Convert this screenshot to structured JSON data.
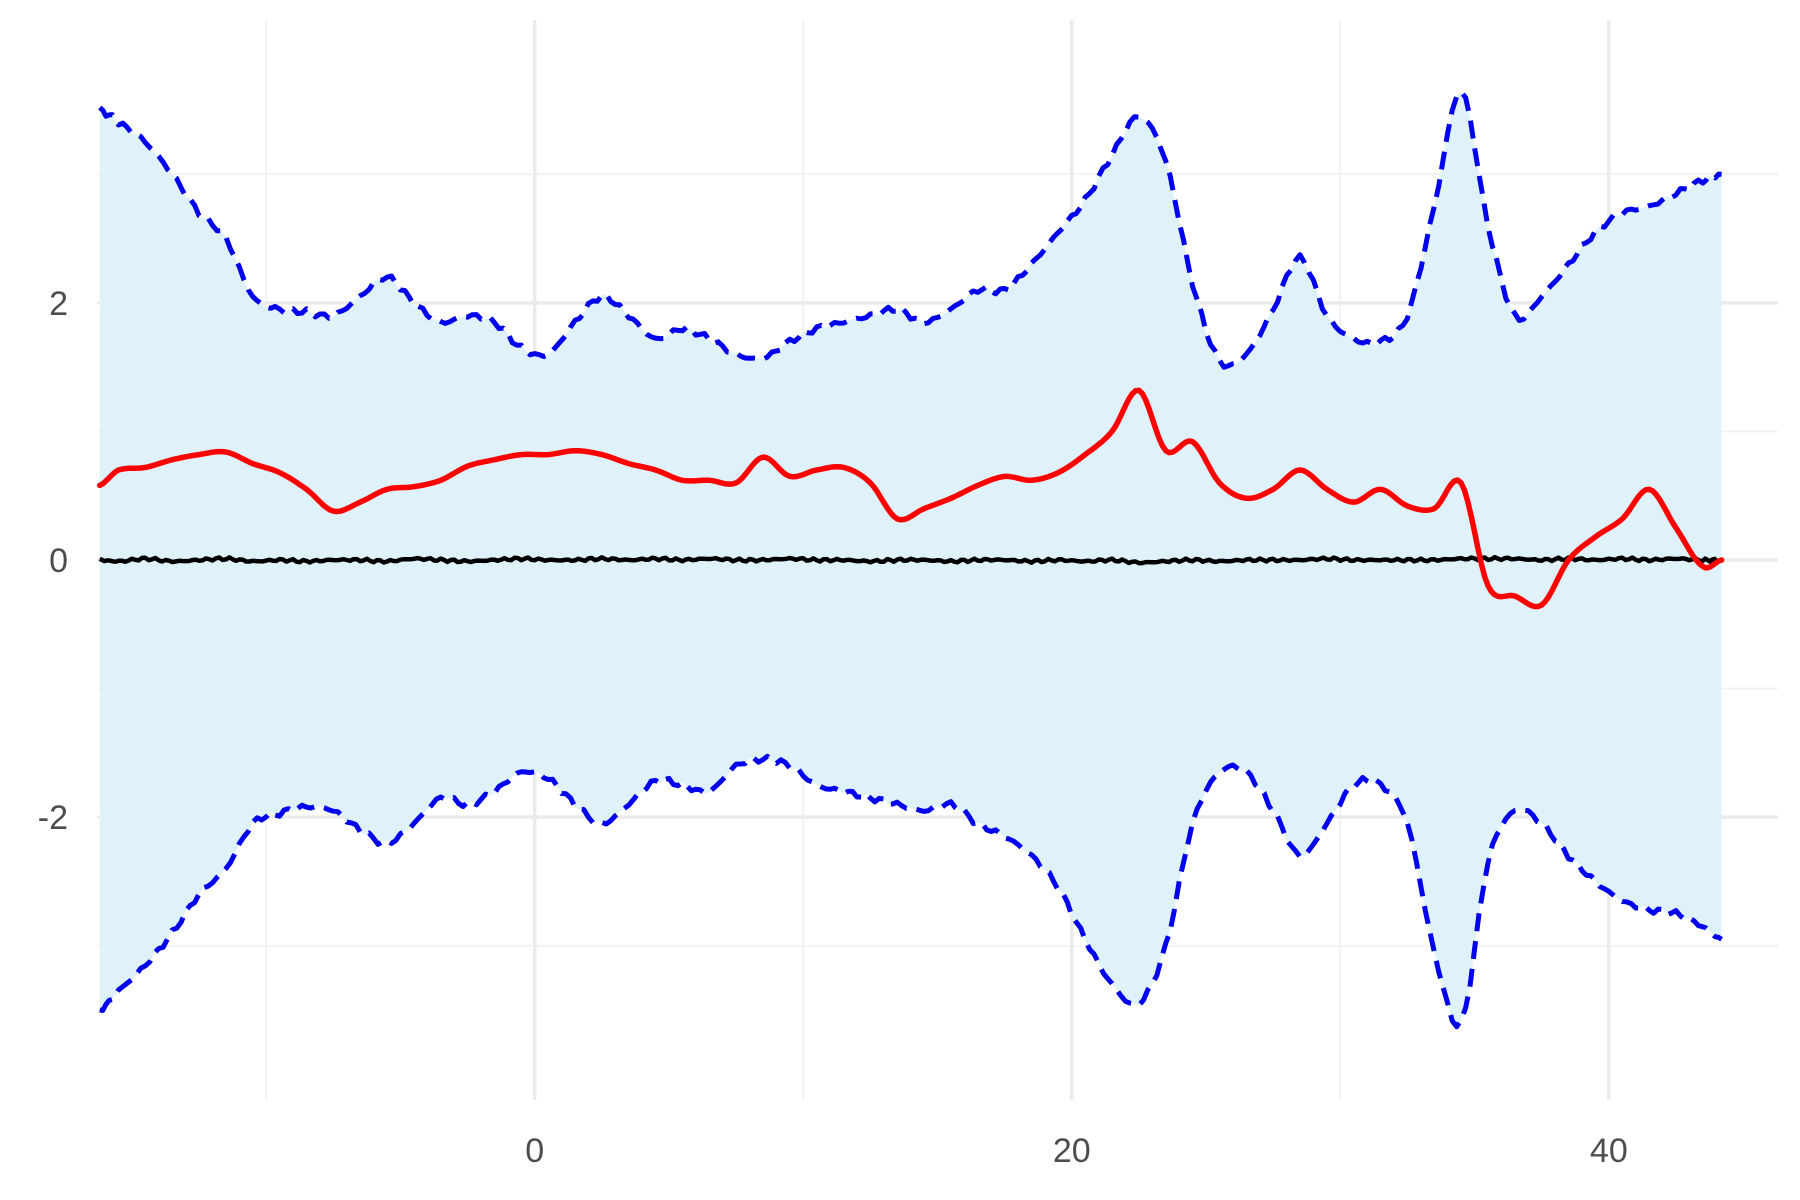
{
  "chart_data": {
    "type": "line",
    "title": "",
    "xlabel": "",
    "ylabel": "",
    "xlim": [
      -16.3,
      46.3
    ],
    "ylim": [
      -4.2,
      4.2
    ],
    "x_ticks": [
      0,
      20,
      40
    ],
    "x_tick_labels": [
      "0",
      "20",
      "40"
    ],
    "x_minor_ticks": [
      -10,
      10,
      30
    ],
    "y_ticks": [
      -2,
      0,
      2
    ],
    "y_tick_labels": [
      "-2",
      "0",
      "2"
    ],
    "y_minor_ticks": [
      -3,
      -1,
      1,
      3
    ],
    "grid": true,
    "legend": "none",
    "colors": {
      "band_fill": "#dff2f9",
      "upper_line": "#0000ee",
      "lower_line": "#0000ee",
      "red_series": "#ff0000",
      "black_series": "#000000",
      "grid_major": "#ebebeb",
      "grid_minor": "#f2f2f2"
    },
    "upper_band": {
      "x": [
        -16.2,
        -15.5,
        -14.5,
        -13.5,
        -12.5,
        -11.5,
        -10.5,
        -9.5,
        -8.5,
        -7.5,
        -6.5,
        -5.5,
        -4.5,
        -3.5,
        -2.5,
        -1.5,
        -0.5,
        0.5,
        1.5,
        2.5,
        3.5,
        4.5,
        5.5,
        6.5,
        7.5,
        8.5,
        9.5,
        10.5,
        11.5,
        12.5,
        13.5,
        14.5,
        15.5,
        16.5,
        17.5,
        18.5,
        19.5,
        20.5,
        21.5,
        22.5,
        23.5,
        24.5,
        25.5,
        26.5,
        27.5,
        28.5,
        29.5,
        30.5,
        31.5,
        32.5,
        33.5,
        34.5,
        35.5,
        36.5,
        37.5,
        38.5,
        39.5,
        40.5,
        41.5,
        42.5,
        43.5,
        44.2
      ],
      "values": [
        3.5,
        3.4,
        3.25,
        3.0,
        2.7,
        2.5,
        2.05,
        1.95,
        1.93,
        1.9,
        2.05,
        2.2,
        2.0,
        1.85,
        1.9,
        1.85,
        1.65,
        1.6,
        1.85,
        2.05,
        1.9,
        1.72,
        1.8,
        1.72,
        1.6,
        1.57,
        1.7,
        1.8,
        1.85,
        1.9,
        1.95,
        1.85,
        1.95,
        2.1,
        2.1,
        2.3,
        2.55,
        2.8,
        3.15,
        3.45,
        3.1,
        2.15,
        1.55,
        1.6,
        1.95,
        2.35,
        1.9,
        1.72,
        1.7,
        1.9,
        2.75,
        3.65,
        2.6,
        1.9,
        2.05,
        2.3,
        2.55,
        2.7,
        2.75,
        2.85,
        2.95,
        3.0
      ]
    },
    "lower_band": {
      "x": [
        -16.2,
        -15.5,
        -14.5,
        -13.5,
        -12.5,
        -11.5,
        -10.5,
        -9.5,
        -8.5,
        -7.5,
        -6.5,
        -5.5,
        -4.5,
        -3.5,
        -2.5,
        -1.5,
        -0.5,
        0.5,
        1.5,
        2.5,
        3.5,
        4.5,
        5.5,
        6.5,
        7.5,
        8.5,
        9.5,
        10.5,
        11.5,
        12.5,
        13.5,
        14.5,
        15.5,
        16.5,
        17.5,
        18.5,
        19.5,
        20.5,
        21.5,
        22.5,
        23.5,
        24.5,
        25.5,
        26.5,
        27.5,
        28.5,
        29.5,
        30.5,
        31.5,
        32.5,
        33.5,
        34.5,
        35.5,
        36.5,
        37.5,
        38.5,
        39.5,
        40.5,
        41.5,
        42.5,
        43.5,
        44.2
      ],
      "values": [
        -3.5,
        -3.35,
        -3.15,
        -2.9,
        -2.6,
        -2.4,
        -2.05,
        -1.97,
        -1.92,
        -1.95,
        -2.1,
        -2.2,
        -2.05,
        -1.85,
        -1.9,
        -1.8,
        -1.65,
        -1.7,
        -1.9,
        -2.05,
        -1.9,
        -1.72,
        -1.75,
        -1.8,
        -1.6,
        -1.55,
        -1.6,
        -1.75,
        -1.8,
        -1.85,
        -1.9,
        -1.95,
        -1.9,
        -2.05,
        -2.15,
        -2.3,
        -2.55,
        -2.95,
        -3.3,
        -3.45,
        -3.0,
        -2.05,
        -1.65,
        -1.65,
        -1.95,
        -2.3,
        -2.05,
        -1.75,
        -1.75,
        -2.05,
        -3.05,
        -3.6,
        -2.35,
        -1.95,
        -2.05,
        -2.3,
        -2.5,
        -2.65,
        -2.72,
        -2.75,
        -2.85,
        -2.95
      ]
    },
    "series": [
      {
        "x": [
          -16.2,
          -15.5,
          -14.5,
          -13.5,
          -12.5,
          -11.5,
          -10.5,
          -9.5,
          -8.5,
          -7.5,
          -6.5,
          -5.5,
          -4.5,
          -3.5,
          -2.5,
          -1.5,
          -0.5,
          0.5,
          1.5,
          2.5,
          3.5,
          4.5,
          5.5,
          6.5,
          7.5,
          8.5,
          9.5,
          10.5,
          11.5,
          12.5,
          13.5,
          14.5,
          15.5,
          16.5,
          17.5,
          18.5,
          19.5,
          20.5,
          21.5,
          22.5,
          23.5,
          24.5,
          25.5,
          26.5,
          27.5,
          28.5,
          29.5,
          30.5,
          31.5,
          32.5,
          33.5,
          34.5,
          35.5,
          36.5,
          37.5,
          38.5,
          39.5,
          40.5,
          41.5,
          42.5,
          43.5,
          44.2
        ],
        "values": [
          0.58,
          0.7,
          0.72,
          0.78,
          0.82,
          0.84,
          0.75,
          0.68,
          0.55,
          0.38,
          0.45,
          0.55,
          0.57,
          0.62,
          0.73,
          0.78,
          0.82,
          0.82,
          0.85,
          0.82,
          0.75,
          0.7,
          0.62,
          0.62,
          0.6,
          0.8,
          0.65,
          0.7,
          0.72,
          0.6,
          0.32,
          0.4,
          0.48,
          0.58,
          0.65,
          0.62,
          0.68,
          0.82,
          1.0,
          1.32,
          0.85,
          0.92,
          0.6,
          0.48,
          0.55,
          0.7,
          0.55,
          0.45,
          0.55,
          0.42,
          0.4,
          0.6,
          -0.2,
          -0.28,
          -0.35,
          0.0,
          0.18,
          0.32,
          0.55,
          0.25,
          -0.05,
          0.0
        ]
      },
      {
        "x": [
          -16.2,
          -15.5,
          -14.5,
          -13.5,
          -12.5,
          -11.5,
          -10.5,
          -9.5,
          -8.5,
          -7.5,
          -6.5,
          -5.5,
          -4.5,
          -3.5,
          -2.5,
          -1.5,
          -0.5,
          0.5,
          1.5,
          2.5,
          3.5,
          4.5,
          5.5,
          6.5,
          7.5,
          8.5,
          9.5,
          10.5,
          11.5,
          12.5,
          13.5,
          14.5,
          15.5,
          16.5,
          17.5,
          18.5,
          19.5,
          20.5,
          21.5,
          22.5,
          23.5,
          24.5,
          25.5,
          26.5,
          27.5,
          28.5,
          29.5,
          30.5,
          31.5,
          32.5,
          33.5,
          34.5,
          35.5,
          36.5,
          37.5,
          38.5,
          39.5,
          40.5,
          41.5,
          42.5,
          43.5,
          44.2
        ],
        "values": [
          0.0,
          -0.01,
          0.01,
          -0.01,
          0.0,
          0.01,
          -0.01,
          0.0,
          -0.01,
          0.0,
          0.0,
          -0.01,
          0.01,
          0.0,
          -0.01,
          0.0,
          0.01,
          0.0,
          0.0,
          0.01,
          0.0,
          0.01,
          0.0,
          0.01,
          0.0,
          0.0,
          0.01,
          0.0,
          0.0,
          -0.01,
          0.0,
          0.0,
          -0.01,
          0.0,
          0.0,
          -0.01,
          0.0,
          -0.01,
          0.0,
          -0.02,
          -0.01,
          0.0,
          -0.01,
          0.0,
          0.0,
          0.0,
          0.01,
          0.0,
          0.0,
          0.0,
          0.0,
          0.01,
          0.01,
          0.01,
          0.0,
          0.01,
          0.0,
          0.01,
          0.0,
          0.01,
          0.0,
          0.0
        ]
      }
    ]
  }
}
